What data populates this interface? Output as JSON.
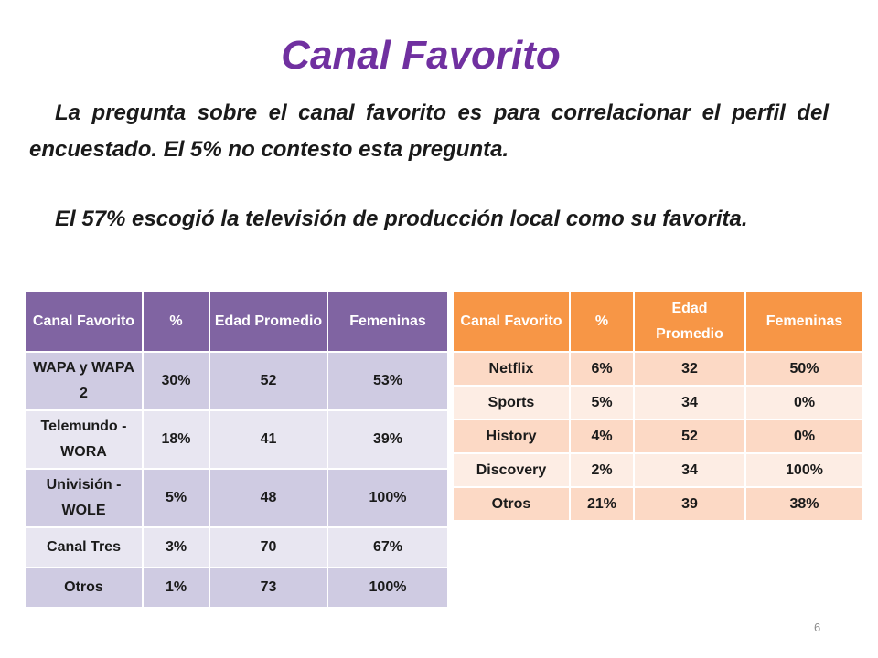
{
  "slide": {
    "title": "Canal Favorito",
    "paragraph1": "La pregunta sobre el canal favorito es para correlacionar el perfil del encuestado.  El 5% no contesto esta pregunta.",
    "paragraph2": "El 57% escogió la televisión de producción local como su favorita.",
    "page_number": "6"
  },
  "table_left": {
    "headers": [
      "Canal Favorito",
      "%",
      "Edad Promedio",
      "Femeninas"
    ],
    "rows": [
      [
        "WAPA y WAPA 2",
        "30%",
        "52",
        "53%"
      ],
      [
        "Telemundo - WORA",
        "18%",
        "41",
        "39%"
      ],
      [
        "Univisión - WOLE",
        "5%",
        "48",
        "100%"
      ],
      [
        "Canal Tres",
        "3%",
        "70",
        "67%"
      ],
      [
        "Otros",
        "1%",
        "73",
        "100%"
      ]
    ],
    "header_color": "#8064a2"
  },
  "table_right": {
    "headers": [
      "Canal Favorito",
      "%",
      "Edad Promedio",
      "Femeninas"
    ],
    "rows": [
      [
        "Netflix",
        "6%",
        "32",
        "50%"
      ],
      [
        "Sports",
        "5%",
        "34",
        "0%"
      ],
      [
        "History",
        "4%",
        "52",
        "0%"
      ],
      [
        "Discovery",
        "2%",
        "34",
        "100%"
      ],
      [
        "Otros",
        "21%",
        "39",
        "38%"
      ]
    ],
    "header_color": "#f79646"
  }
}
